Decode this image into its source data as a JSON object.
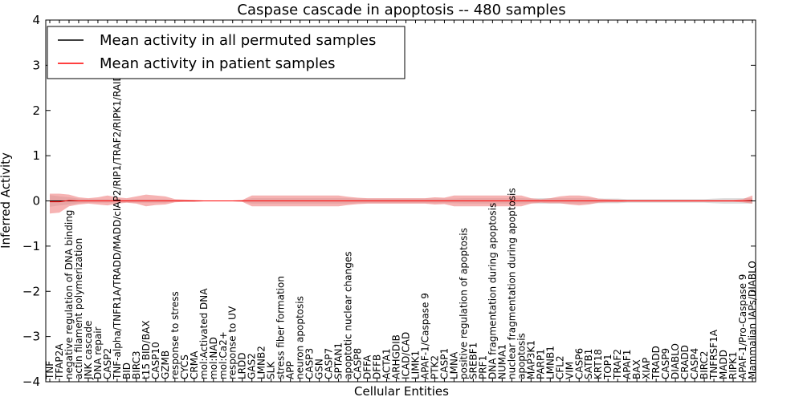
{
  "chart_data": {
    "type": "area",
    "title": "Caspase cascade in apoptosis -- 480 samples",
    "xlabel": "Cellular Entities",
    "ylabel": "Inferred Activity",
    "ylim": [
      -4,
      4
    ],
    "yticks": [
      -4,
      -3,
      -2,
      -1,
      0,
      1,
      2,
      3,
      4
    ],
    "grid": false,
    "legend": {
      "placement": "top-left",
      "entries": [
        {
          "label": "Mean activity in all permuted samples",
          "color": "#000000"
        },
        {
          "label": "Mean activity in patient samples",
          "color": "#ff0000"
        }
      ]
    },
    "categories": [
      "TNF",
      "TFAP2A",
      "negative regulation of DNA binding",
      "actin filament polymerization",
      "JNK cascade",
      "DNA repair",
      "CASP2",
      "TNF-alpha/TNFR1A/TRADD/MADD/cIAP2/RIP1/TRAF2/RIPK1/RAIDD",
      "BID",
      "BIRC3",
      "t15 BID/BAX",
      "CASP10",
      "GZMB",
      "response to stress",
      "CYCS",
      "CRMA",
      "mol:Activated DNA",
      "mol:NAD",
      "mol:Ca2+",
      "response to UV",
      "LRDD",
      "GAS2",
      "LMNB2",
      "SLK",
      "stress fiber formation",
      "APP",
      "neuron apoptosis",
      "CASP3",
      "GSN",
      "CASP7",
      "SPTAN1",
      "apoptotic nuclear changes",
      "CASP8",
      "DFFA",
      "DFFB",
      "ACTA1",
      "ARHGDIB",
      "ICAD/CAD",
      "LIMK1",
      "APAF-1/Caspase 9",
      "PTK2",
      "CASP1",
      "LMNA",
      "positive regulation of apoptosis",
      "SREBF1",
      "PRF1",
      "DNA fragmentation during apoptosis",
      "NUMA1",
      "nuclear fragmentation during apoptosis",
      "apoptosis",
      "MAP3K1",
      "PARP1",
      "LMNB1",
      "CFL2",
      "VIM",
      "CASP6",
      "SATB1",
      "KRT18",
      "TOP1",
      "TRAF2",
      "APAF1",
      "BAX",
      "XIAP",
      "TRADD",
      "CASP9",
      "DIABLO",
      "CRADD",
      "CASP4",
      "BIRC2",
      "TNFRSF1A",
      "MADD",
      "RIPK1",
      "APAF-1/Pro-Caspase 9",
      "Mammalian IAPs/DIABLO"
    ],
    "series": [
      {
        "name": "Mean activity in all permuted samples",
        "color": "#000000",
        "values": [
          0.0,
          0.0,
          0.0,
          0.0,
          0.0,
          0.0,
          0.0,
          0.0,
          0.0,
          0.0,
          0.0,
          0.0,
          0.0,
          0.0,
          0.0,
          0.0,
          0.0,
          0.0,
          0.0,
          0.0,
          0.0,
          0.0,
          0.0,
          0.0,
          0.0,
          0.0,
          0.0,
          0.0,
          0.0,
          0.0,
          0.0,
          0.0,
          0.0,
          0.0,
          0.0,
          0.0,
          0.0,
          0.0,
          0.0,
          0.0,
          0.0,
          0.0,
          0.0,
          0.0,
          0.0,
          0.0,
          0.0,
          0.0,
          0.0,
          0.0,
          0.0,
          0.0,
          0.0,
          0.0,
          0.0,
          0.0,
          0.0,
          0.0,
          0.0,
          0.0,
          0.0,
          0.0,
          0.0,
          0.0,
          0.0,
          0.0,
          0.0,
          0.0,
          0.0,
          0.0,
          0.0,
          0.0,
          0.0,
          0.0
        ],
        "band_low": [
          -0.13,
          -0.1,
          -0.08,
          -0.05,
          -0.04,
          -0.04,
          -0.04,
          -0.03,
          -0.03,
          -0.04,
          -0.04,
          -0.04,
          -0.04,
          -0.02,
          -0.02,
          -0.02,
          -0.01,
          -0.01,
          -0.01,
          -0.01,
          -0.02,
          -0.06,
          -0.06,
          -0.06,
          -0.06,
          -0.06,
          -0.06,
          -0.06,
          -0.06,
          -0.06,
          -0.06,
          -0.06,
          -0.05,
          -0.05,
          -0.05,
          -0.05,
          -0.05,
          -0.05,
          -0.05,
          -0.05,
          -0.05,
          -0.05,
          -0.05,
          -0.06,
          -0.06,
          -0.06,
          -0.06,
          -0.06,
          -0.06,
          -0.06,
          -0.05,
          -0.06,
          -0.06,
          -0.06,
          -0.06,
          -0.06,
          -0.06,
          -0.05,
          -0.05,
          -0.05,
          -0.04,
          -0.04,
          -0.04,
          -0.04,
          -0.04,
          -0.04,
          -0.04,
          -0.04,
          -0.04,
          -0.05,
          -0.06,
          -0.06,
          -0.06,
          -0.06
        ],
        "band_high": [
          0.13,
          0.1,
          0.08,
          0.05,
          0.04,
          0.04,
          0.04,
          0.03,
          0.03,
          0.04,
          0.04,
          0.04,
          0.04,
          0.02,
          0.02,
          0.02,
          0.01,
          0.01,
          0.01,
          0.01,
          0.02,
          0.06,
          0.06,
          0.06,
          0.06,
          0.06,
          0.06,
          0.06,
          0.06,
          0.06,
          0.06,
          0.06,
          0.05,
          0.05,
          0.05,
          0.05,
          0.05,
          0.05,
          0.05,
          0.05,
          0.05,
          0.05,
          0.05,
          0.06,
          0.06,
          0.06,
          0.06,
          0.06,
          0.06,
          0.06,
          0.05,
          0.06,
          0.06,
          0.06,
          0.06,
          0.06,
          0.06,
          0.05,
          0.05,
          0.05,
          0.04,
          0.04,
          0.04,
          0.04,
          0.04,
          0.04,
          0.04,
          0.04,
          0.04,
          0.05,
          0.06,
          0.06,
          0.06,
          0.06
        ]
      },
      {
        "name": "Mean activity in patient samples",
        "color": "#ff0000",
        "values": [
          -0.02,
          -0.02,
          0.01,
          0.0,
          0.0,
          0.0,
          0.0,
          0.0,
          0.0,
          0.0,
          0.0,
          0.0,
          0.0,
          0.0,
          0.0,
          0.0,
          0.0,
          0.0,
          0.0,
          0.0,
          0.0,
          0.0,
          0.0,
          0.0,
          0.0,
          0.0,
          0.0,
          0.0,
          0.0,
          0.0,
          0.0,
          0.0,
          0.0,
          0.0,
          0.0,
          0.0,
          0.0,
          0.0,
          0.0,
          0.0,
          0.0,
          0.0,
          0.0,
          0.0,
          0.0,
          0.0,
          0.0,
          0.0,
          0.0,
          0.0,
          0.0,
          0.0,
          0.0,
          0.0,
          0.0,
          0.0,
          0.0,
          0.0,
          0.0,
          0.0,
          0.0,
          0.0,
          0.0,
          0.0,
          0.0,
          0.0,
          0.0,
          0.0,
          0.0,
          0.0,
          0.0,
          0.0,
          0.0,
          0.01
        ],
        "band_low": [
          -0.28,
          -0.26,
          -0.12,
          -0.08,
          -0.06,
          -0.08,
          -0.1,
          -0.06,
          -0.04,
          -0.06,
          -0.12,
          -0.09,
          -0.08,
          -0.03,
          -0.02,
          -0.02,
          -0.01,
          -0.01,
          -0.01,
          -0.01,
          -0.02,
          -0.12,
          -0.12,
          -0.12,
          -0.12,
          -0.12,
          -0.12,
          -0.12,
          -0.12,
          -0.12,
          -0.12,
          -0.09,
          -0.07,
          -0.06,
          -0.06,
          -0.06,
          -0.06,
          -0.06,
          -0.06,
          -0.06,
          -0.08,
          -0.07,
          -0.12,
          -0.12,
          -0.12,
          -0.12,
          -0.12,
          -0.12,
          -0.12,
          -0.12,
          -0.06,
          -0.04,
          -0.05,
          -0.05,
          -0.08,
          -0.1,
          -0.08,
          -0.04,
          -0.03,
          -0.03,
          -0.02,
          -0.02,
          -0.02,
          -0.02,
          -0.02,
          -0.02,
          -0.02,
          -0.02,
          -0.02,
          -0.02,
          -0.02,
          -0.02,
          -0.03,
          -0.06
        ],
        "band_high": [
          0.16,
          0.16,
          0.14,
          0.08,
          0.06,
          0.08,
          0.12,
          0.08,
          0.06,
          0.1,
          0.14,
          0.12,
          0.1,
          0.04,
          0.03,
          0.02,
          0.01,
          0.01,
          0.01,
          0.01,
          0.02,
          0.12,
          0.12,
          0.12,
          0.12,
          0.12,
          0.12,
          0.12,
          0.12,
          0.12,
          0.12,
          0.09,
          0.07,
          0.06,
          0.06,
          0.06,
          0.06,
          0.06,
          0.06,
          0.06,
          0.08,
          0.07,
          0.12,
          0.12,
          0.12,
          0.12,
          0.12,
          0.12,
          0.12,
          0.12,
          0.06,
          0.04,
          0.06,
          0.1,
          0.12,
          0.12,
          0.1,
          0.05,
          0.04,
          0.03,
          0.02,
          0.02,
          0.02,
          0.02,
          0.02,
          0.02,
          0.02,
          0.02,
          0.02,
          0.02,
          0.02,
          0.02,
          0.04,
          0.12
        ]
      }
    ],
    "band_colors": {
      "permuted": "#d3d3d3",
      "patient": "#f08080"
    }
  }
}
